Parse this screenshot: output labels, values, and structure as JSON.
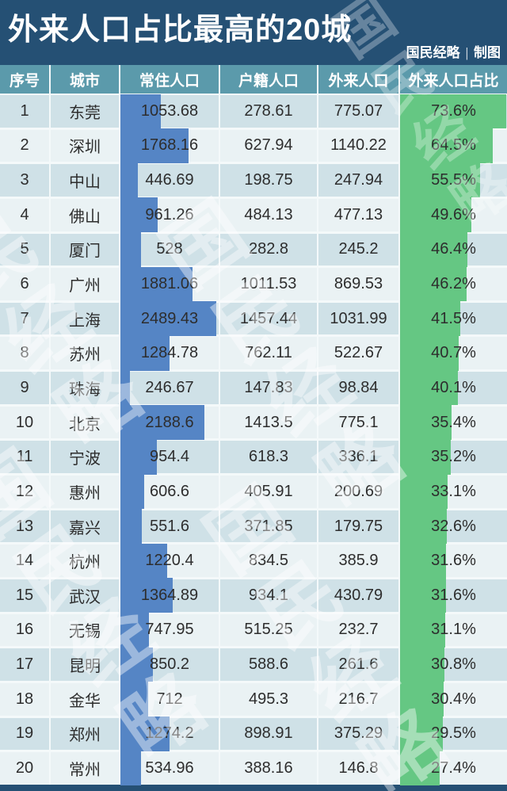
{
  "banner": {
    "title": "外来人口占比最高的20城",
    "credit": {
      "source": "国民经略",
      "separator": "|",
      "label": "制图"
    }
  },
  "watermark": {
    "text": "国民经略"
  },
  "colors": {
    "banner_bg": "#255074",
    "header_bg": "#5b9aab",
    "row_odd_bg": "#cfe1e7",
    "row_even_bg": "#eaf2f4",
    "resident_bar": "#5585c5",
    "ratio_bar": "#65c783",
    "text": "#2d2d2d"
  },
  "chart_data": {
    "type": "table",
    "title": "外来人口占比最高的20城",
    "columns": [
      "序号",
      "城市",
      "常住人口",
      "户籍人口",
      "外来人口",
      "外来人口占比"
    ],
    "rows": [
      [
        "1",
        "东莞",
        "1053.68",
        "278.61",
        "775.07",
        "73.6%"
      ],
      [
        "2",
        "深圳",
        "1768.16",
        "627.94",
        "1140.22",
        "64.5%"
      ],
      [
        "3",
        "中山",
        "446.69",
        "198.75",
        "247.94",
        "55.5%"
      ],
      [
        "4",
        "佛山",
        "961.26",
        "484.13",
        "477.13",
        "49.6%"
      ],
      [
        "5",
        "厦门",
        "528",
        "282.8",
        "245.2",
        "46.4%"
      ],
      [
        "6",
        "广州",
        "1881.06",
        "1011.53",
        "869.53",
        "46.2%"
      ],
      [
        "7",
        "上海",
        "2489.43",
        "1457.44",
        "1031.99",
        "41.5%"
      ],
      [
        "8",
        "苏州",
        "1284.78",
        "762.11",
        "522.67",
        "40.7%"
      ],
      [
        "9",
        "珠海",
        "246.67",
        "147.83",
        "98.84",
        "40.1%"
      ],
      [
        "10",
        "北京",
        "2188.6",
        "1413.5",
        "775.1",
        "35.4%"
      ],
      [
        "11",
        "宁波",
        "954.4",
        "618.3",
        "336.1",
        "35.2%"
      ],
      [
        "12",
        "惠州",
        "606.6",
        "405.91",
        "200.69",
        "33.1%"
      ],
      [
        "13",
        "嘉兴",
        "551.6",
        "371.85",
        "179.75",
        "32.6%"
      ],
      [
        "14",
        "杭州",
        "1220.4",
        "834.5",
        "385.9",
        "31.6%"
      ],
      [
        "15",
        "武汉",
        "1364.89",
        "934.1",
        "430.79",
        "31.6%"
      ],
      [
        "16",
        "无锡",
        "747.95",
        "515.25",
        "232.7",
        "31.1%"
      ],
      [
        "17",
        "昆明",
        "850.2",
        "588.6",
        "261.6",
        "30.8%"
      ],
      [
        "18",
        "金华",
        "712",
        "495.3",
        "216.7",
        "30.4%"
      ],
      [
        "19",
        "郑州",
        "1274.2",
        "898.91",
        "375.29",
        "29.5%"
      ],
      [
        "20",
        "常州",
        "534.96",
        "388.16",
        "146.8",
        "27.4%"
      ]
    ],
    "embedded_bars": [
      {
        "column": "常住人口",
        "type": "bar",
        "color": "#5585c5",
        "scale_max": 2489.43
      },
      {
        "column": "外来人口占比",
        "type": "bar",
        "color": "#65c783",
        "scale_max": 73.6
      }
    ],
    "legend_position": "none",
    "grid": false
  }
}
